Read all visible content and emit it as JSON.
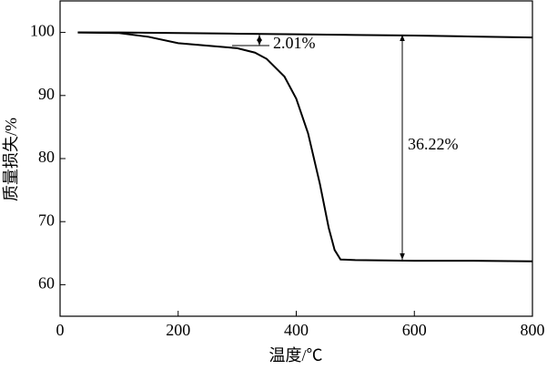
{
  "chart_data": {
    "type": "line",
    "xlabel": "温度/℃",
    "ylabel": "质量损失/%",
    "annotations": [
      "2.01%",
      "36.22%"
    ],
    "xlim": [
      0,
      800
    ],
    "ylim": [
      55,
      105
    ],
    "xticks": [
      0,
      200,
      400,
      600,
      800
    ],
    "yticks": [
      60,
      70,
      80,
      90,
      100
    ],
    "series": [
      {
        "color": "#000000",
        "x": [
          30,
          100,
          200,
          300,
          400,
          500,
          600,
          700,
          800
        ],
        "values": [
          100,
          100,
          99.9,
          99.8,
          99.7,
          99.6,
          99.5,
          99.35,
          99.2
        ]
      },
      {
        "color": "#000000",
        "x": [
          30,
          100,
          150,
          200,
          250,
          300,
          330,
          350,
          380,
          400,
          420,
          440,
          455,
          465,
          475,
          500,
          600,
          700,
          800
        ],
        "values": [
          100,
          99.9,
          99.3,
          98.3,
          97.9,
          97.5,
          96.8,
          95.8,
          93,
          89.5,
          84,
          76,
          69,
          65.5,
          64,
          63.9,
          63.8,
          63.8,
          63.7
        ]
      }
    ]
  }
}
